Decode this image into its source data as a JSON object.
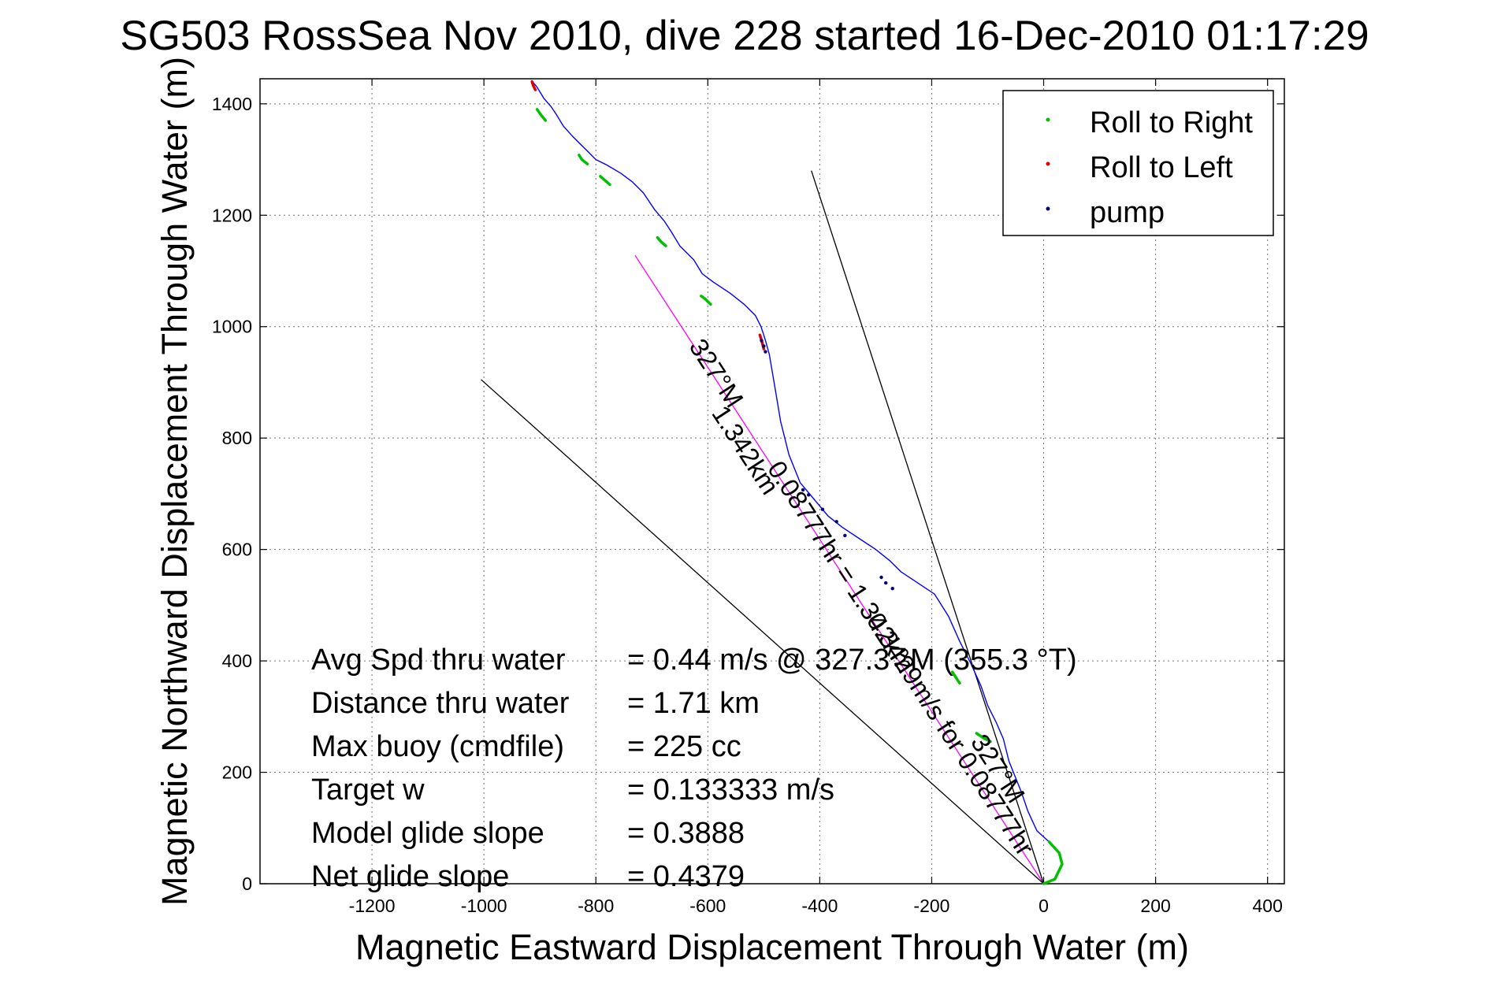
{
  "chart_data": {
    "type": "line",
    "title": "SG503 RossSea Nov 2010, dive 228 started 16-Dec-2010 01:17:29",
    "xlabel": "Magnetic Eastward Displacement Through Water (m)",
    "ylabel": "Magnetic Northward Displacement Through Water (m)",
    "xlim": [
      -1400,
      430
    ],
    "ylim": [
      0,
      1445
    ],
    "xticks": [
      -1200,
      -1000,
      -800,
      -600,
      -400,
      -200,
      0,
      200,
      400
    ],
    "yticks": [
      0,
      200,
      400,
      600,
      800,
      1000,
      1200,
      1400
    ],
    "grid": true,
    "legend_position": "top-right",
    "legend": [
      {
        "label": "Roll to Right",
        "color": "#00c000"
      },
      {
        "label": "Roll to Left",
        "color": "#e00000"
      },
      {
        "label": "pump",
        "color": "#000080"
      }
    ],
    "series": [
      {
        "name": "track",
        "color": "#0000ff",
        "x": [
          0,
          20,
          33,
          28,
          10,
          -12,
          -28,
          -40,
          -50,
          -62,
          -72,
          -85,
          -100,
          -112,
          -130,
          -150,
          -170,
          -195,
          -225,
          -255,
          -275,
          -300,
          -330,
          -360,
          -385,
          -410,
          -435,
          -455,
          -470,
          -480,
          -490,
          -497,
          -500,
          -505,
          -515,
          -535,
          -560,
          -590,
          -610,
          -625,
          -650,
          -665,
          -678,
          -695,
          -715,
          -735,
          -755,
          -780,
          -800,
          -815,
          -840,
          -858,
          -870,
          -880,
          -893,
          -905,
          -915
        ],
        "y": [
          0,
          8,
          35,
          55,
          75,
          95,
          130,
          165,
          190,
          220,
          260,
          290,
          320,
          355,
          395,
          435,
          480,
          520,
          540,
          560,
          580,
          600,
          620,
          640,
          660,
          690,
          720,
          770,
          830,
          890,
          950,
          975,
          985,
          1000,
          1020,
          1040,
          1060,
          1080,
          1095,
          1120,
          1145,
          1170,
          1190,
          1210,
          1240,
          1260,
          1275,
          1290,
          1300,
          1315,
          1340,
          1360,
          1380,
          1395,
          1410,
          1430,
          1442
        ]
      },
      {
        "name": "Roll to Right",
        "color": "#00c000",
        "segments": [
          {
            "x": [
              0,
              20,
              33,
              28,
              10
            ],
            "y": [
              0,
              8,
              35,
              55,
              75
            ]
          },
          {
            "x": [
              -95,
              -108,
              -120
            ],
            "y": [
              255,
              262,
              270
            ]
          },
          {
            "x": [
              -150,
              -158,
              -163
            ],
            "y": [
              360,
              372,
              380
            ]
          },
          {
            "x": [
              -595,
              -605,
              -612
            ],
            "y": [
              1040,
              1050,
              1055
            ]
          },
          {
            "x": [
              -675,
              -683,
              -690
            ],
            "y": [
              1145,
              1152,
              1160
            ]
          },
          {
            "x": [
              -775,
              -783,
              -792
            ],
            "y": [
              1255,
              1262,
              1270
            ]
          },
          {
            "x": [
              -815,
              -825,
              -830
            ],
            "y": [
              1292,
              1300,
              1308
            ]
          },
          {
            "x": [
              -890,
              -898,
              -905
            ],
            "y": [
              1370,
              1380,
              1390
            ]
          }
        ]
      },
      {
        "name": "Roll to Left",
        "color": "#e00000",
        "segments": [
          {
            "x": [
              -500,
              -503,
              -507
            ],
            "y": [
              960,
              972,
              985
            ]
          },
          {
            "x": [
              -908,
              -912,
              -914
            ],
            "y": [
              1425,
              1433,
              1440
            ]
          }
        ]
      },
      {
        "name": "pump",
        "color": "#000080",
        "points": {
          "x": [
            -430,
            -420,
            -395,
            -370,
            -355,
            -290,
            -282,
            -270,
            -497,
            -500,
            -504
          ],
          "y": [
            707,
            698,
            672,
            650,
            625,
            550,
            540,
            530,
            955,
            965,
            975
          ]
        }
      }
    ],
    "reference_lines": [
      {
        "x": [
          0,
          -730
        ],
        "y": [
          0,
          1128
        ],
        "color": "#ff00ff"
      },
      {
        "x": [
          0,
          -1005
        ],
        "y": [
          0,
          905
        ],
        "color": "#000000"
      },
      {
        "x": [
          0,
          -415
        ],
        "y": [
          0,
          1280
        ],
        "color": "#000000"
      }
    ],
    "annotations": [
      {
        "text": "327°M",
        "x": -598,
        "y": 908,
        "rotation": 57
      },
      {
        "text": "1.342km",
        "x": -546,
        "y": 770,
        "rotation": 57
      },
      {
        "text": "0.08777hr = 1.342km",
        "x": -375,
        "y": 560,
        "rotation": 57
      },
      {
        "text": "0.3429m/s for 0.08777hr",
        "x": -180,
        "y": 260,
        "rotation": 57
      },
      {
        "text": "327°M",
        "x": -95,
        "y": 198,
        "rotation": 57
      }
    ],
    "stats": [
      {
        "label": "Avg Spd thru water",
        "value": "=  0.44 m/s @ 327.3 °M (355.3 °T)"
      },
      {
        "label": "Distance thru water",
        "value": "=  1.71 km"
      },
      {
        "label": "Max buoy (cmdfile)",
        "value": "= 225 cc"
      },
      {
        "label": "Target w",
        "value": "= 0.133333 m/s"
      },
      {
        "label": "Model glide slope",
        "value": "= 0.3888"
      },
      {
        "label": "Net glide slope",
        "value": "= 0.4379"
      }
    ]
  }
}
